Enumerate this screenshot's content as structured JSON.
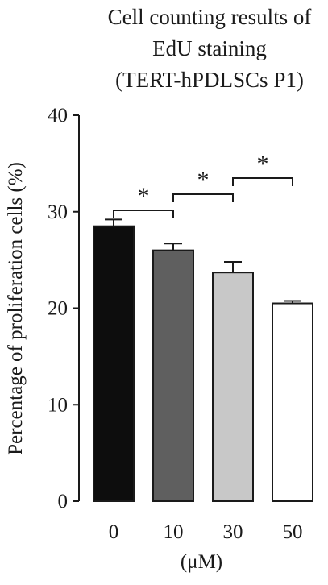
{
  "chart_data": {
    "type": "bar",
    "title_lines": [
      "Cell counting results of",
      "EdU staining",
      "(TERT-hPDLSCs P1)"
    ],
    "categories": [
      "0",
      "10",
      "30",
      "50"
    ],
    "values": [
      28.5,
      26.0,
      23.7,
      20.5
    ],
    "errors": [
      0.7,
      0.7,
      1.1,
      0.25
    ],
    "colors": [
      "#0d0d0d",
      "#5f5f5f",
      "#c8c8c8",
      "#ffffff"
    ],
    "xlabel": "(μM)",
    "ylabel": "Percentage of proliferation cells (%)",
    "ylim": [
      0,
      40
    ],
    "yticks": [
      0,
      10,
      20,
      30,
      40
    ],
    "grid": false,
    "significance": [
      {
        "from": 0,
        "to": 1,
        "label": "*"
      },
      {
        "from": 1,
        "to": 2,
        "label": "*"
      },
      {
        "from": 2,
        "to": 3,
        "label": "*"
      }
    ]
  }
}
